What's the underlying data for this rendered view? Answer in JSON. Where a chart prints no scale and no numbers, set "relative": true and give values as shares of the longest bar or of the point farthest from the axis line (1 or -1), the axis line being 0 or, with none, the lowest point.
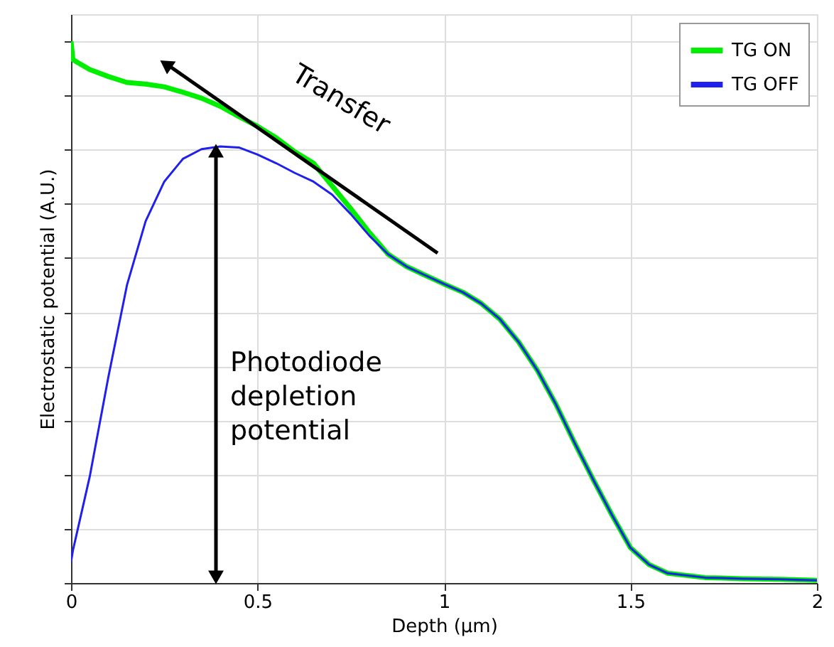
{
  "chart_data": {
    "type": "line",
    "relative": true,
    "xlabel": "Depth (µm)",
    "ylabel": "Electrostatic potential (A.U.)",
    "x": [
      0,
      0.005,
      0.05,
      0.1,
      0.15,
      0.2,
      0.25,
      0.3,
      0.35,
      0.4,
      0.45,
      0.5,
      0.55,
      0.6,
      0.65,
      0.7,
      0.75,
      0.8,
      0.85,
      0.9,
      0.95,
      1.0,
      1.05,
      1.1,
      1.15,
      1.2,
      1.25,
      1.3,
      1.35,
      1.4,
      1.45,
      1.5,
      1.55,
      1.6,
      1.7,
      1.8,
      1.9,
      2.0
    ],
    "xlim": [
      0,
      2
    ],
    "xticks": [
      0,
      0.5,
      1,
      1.5,
      2
    ],
    "series": [
      {
        "name": "TG ON",
        "color": "#00ee00",
        "values": [
          1.0,
          0.966,
          0.948,
          0.935,
          0.924,
          0.921,
          0.916,
          0.906,
          0.895,
          0.88,
          0.861,
          0.843,
          0.822,
          0.796,
          0.775,
          0.733,
          0.691,
          0.647,
          0.607,
          0.584,
          0.568,
          0.552,
          0.537,
          0.516,
          0.487,
          0.445,
          0.393,
          0.33,
          0.259,
          0.191,
          0.126,
          0.065,
          0.034,
          0.018,
          0.01,
          0.008,
          0.007,
          0.005
        ]
      },
      {
        "name": "TG OFF",
        "color": "#2020ee",
        "values": [
          0.039,
          0.06,
          0.196,
          0.38,
          0.55,
          0.668,
          0.741,
          0.783,
          0.801,
          0.806,
          0.804,
          0.791,
          0.775,
          0.757,
          0.741,
          0.717,
          0.681,
          0.641,
          0.607,
          0.584,
          0.568,
          0.552,
          0.537,
          0.516,
          0.487,
          0.445,
          0.393,
          0.33,
          0.259,
          0.191,
          0.126,
          0.065,
          0.034,
          0.018,
          0.01,
          0.008,
          0.007,
          0.005
        ]
      }
    ],
    "annotations": [
      "Transfer",
      "Photodiode depletion potential"
    ],
    "grid": true,
    "legend": "top right",
    "line_style": "solid",
    "marker": "none"
  }
}
